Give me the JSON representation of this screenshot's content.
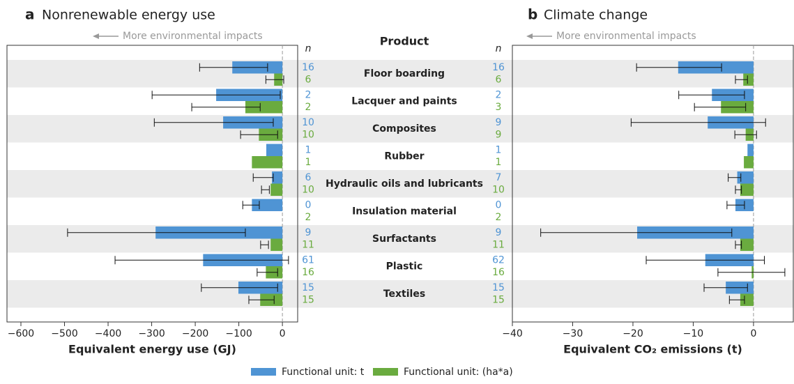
{
  "chart_data": [
    {
      "type": "hbar",
      "panel": "a",
      "title": "Nonrenewable energy use",
      "arrow_label": "More environmental impacts",
      "n_label": "n",
      "categories_header": "Product",
      "categories": [
        "Floor boarding",
        "Lacquer and paints",
        "Composites",
        "Rubber",
        "Hydraulic oils and lubricants",
        "Insulation material",
        "Surfactants",
        "Plastic",
        "Textiles"
      ],
      "xlabel": "Equivalent energy use (GJ)",
      "xlim": [
        -632,
        35
      ],
      "xticks": [
        {
          "value": -600,
          "label": "−600"
        },
        {
          "value": -500,
          "label": "−500"
        },
        {
          "value": -400,
          "label": "−400"
        },
        {
          "value": -300,
          "label": "−300"
        },
        {
          "value": -200,
          "label": "−200"
        },
        {
          "value": -100,
          "label": "−100"
        },
        0
      ],
      "series": [
        {
          "name": "Functional unit: t",
          "color": "#4f94d4",
          "values": [
            -115,
            -152,
            -136,
            -37,
            -24,
            -70,
            -291,
            -182,
            -101
          ],
          "errors": [
            [
              -190,
              -34
            ],
            [
              -299,
              -5
            ],
            [
              -294,
              -21
            ],
            null,
            [
              -67,
              -21
            ],
            [
              -91,
              -53
            ],
            [
              -493,
              -85
            ],
            [
              -384,
              14
            ],
            [
              -186,
              -11
            ]
          ],
          "n": [
            16,
            2,
            10,
            1,
            6,
            0,
            9,
            61,
            15
          ]
        },
        {
          "name": "Functional unit: (ha*a)",
          "color": "#6aab3f",
          "values": [
            -19,
            -85,
            -54,
            -70,
            -27,
            null,
            -27,
            -38,
            -51
          ],
          "errors": [
            [
              -38,
              3
            ],
            [
              -208,
              -51
            ],
            [
              -96,
              -11
            ],
            null,
            [
              -48,
              -30
            ],
            null,
            [
              -50,
              -32
            ],
            [
              -58,
              -11
            ],
            [
              -77,
              -19
            ]
          ],
          "n": [
            6,
            2,
            10,
            1,
            10,
            2,
            11,
            16,
            15
          ]
        }
      ]
    },
    {
      "type": "hbar",
      "panel": "b",
      "title": "Climate change",
      "arrow_label": "More environmental impacts",
      "n_label": "n",
      "xlabel": "Equivalent CO₂ emissions (t)",
      "xlim": [
        -40,
        6.6
      ],
      "xticks": [
        {
          "value": -40,
          "label": "−40"
        },
        {
          "value": -30,
          "label": "−30"
        },
        {
          "value": -20,
          "label": "−20"
        },
        {
          "value": -10,
          "label": "−10"
        },
        0
      ],
      "series": [
        {
          "color": "#4f94d4",
          "values": [
            -12.5,
            -6.9,
            -7.6,
            -1.0,
            -2.7,
            -3.0,
            -19.3,
            -8.0,
            -4.6
          ],
          "errors": [
            [
              -19.4,
              -5.3
            ],
            [
              -12.4,
              -1.5
            ],
            [
              -20.3,
              2.0
            ],
            null,
            [
              -4.2,
              -2.1
            ],
            [
              -4.4,
              -1.5
            ],
            [
              -35.3,
              -3.6
            ],
            [
              -17.8,
              1.8
            ],
            [
              -8.2,
              -1.0
            ]
          ],
          "n": [
            16,
            2,
            9,
            1,
            7,
            0,
            9,
            62,
            15
          ]
        },
        {
          "color": "#6aab3f",
          "values": [
            -1.7,
            -5.4,
            -1.3,
            -1.6,
            -2.2,
            null,
            -2.2,
            -0.3,
            -2.2
          ],
          "errors": [
            [
              -3.0,
              -1.0
            ],
            [
              -9.8,
              -1.3
            ],
            [
              -3.1,
              0.5
            ],
            null,
            [
              -3.0,
              -2.0
            ],
            null,
            [
              -3.0,
              -2.0
            ],
            [
              -5.9,
              5.2
            ],
            [
              -4.0,
              -1.5
            ]
          ],
          "n": [
            6,
            3,
            9,
            1,
            10,
            2,
            11,
            16,
            15
          ]
        }
      ]
    }
  ]
}
